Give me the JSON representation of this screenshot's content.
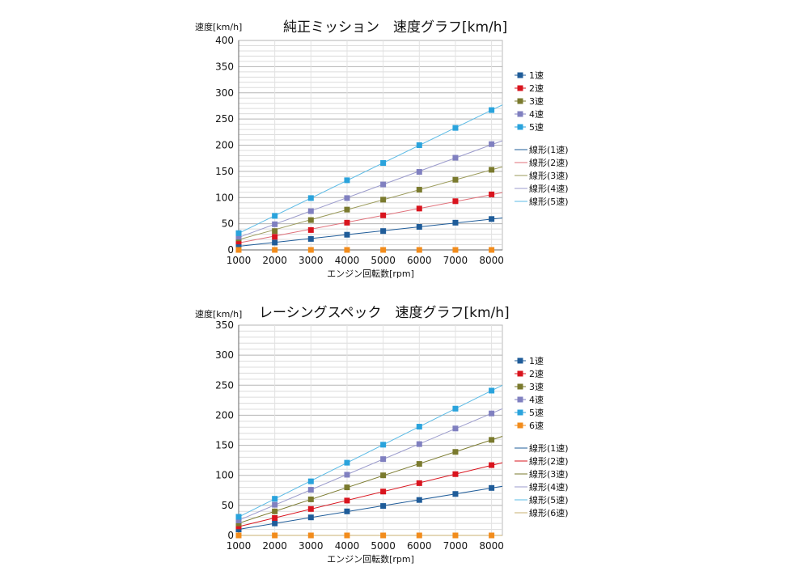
{
  "chart_data": [
    {
      "type": "scatter",
      "title": "純正ミッション　速度グラフ[km/h]",
      "ylabel": "速度[km/h]",
      "xlabel": "エンジン回転数[rpm]",
      "xlim": [
        1000,
        8300
      ],
      "ylim": [
        0,
        400
      ],
      "x_ticks": [
        "1000",
        "2000",
        "3000",
        "4000",
        "5000",
        "6000",
        "7000",
        "8000"
      ],
      "y_ticks": [
        "0",
        "50",
        "100",
        "150",
        "200",
        "250",
        "300",
        "350",
        "400"
      ],
      "grid": true,
      "legend_position": "right",
      "x": [
        1000,
        2000,
        3000,
        4000,
        5000,
        6000,
        7000,
        8000
      ],
      "series": [
        {
          "name": "1速",
          "color": "#1f5c99",
          "values": [
            8,
            14,
            21,
            29,
            36,
            44,
            52,
            59
          ]
        },
        {
          "name": "2速",
          "color": "#d9141e",
          "values": [
            16,
            25,
            38,
            52,
            66,
            79,
            93,
            106
          ]
        },
        {
          "name": "3速",
          "color": "#7a7a2e",
          "values": [
            22,
            36,
            57,
            77,
            96,
            115,
            134,
            153
          ]
        },
        {
          "name": "4速",
          "color": "#8080c0",
          "values": [
            25,
            49,
            74,
            99,
            125,
            149,
            176,
            202
          ]
        },
        {
          "name": "5速",
          "color": "#2aa3dc",
          "values": [
            32,
            65,
            99,
            133,
            166,
            200,
            233,
            267
          ]
        },
        {
          "name": "",
          "color": "#f28c1c",
          "values": [
            0,
            0,
            0,
            0,
            0,
            0,
            0,
            0
          ]
        }
      ],
      "trendlines": [
        {
          "name": "線形(1速)",
          "color": "#1f5c99"
        },
        {
          "name": "線形(2速)",
          "color": "#e0707a"
        },
        {
          "name": "線形(3速)",
          "color": "#9a9a5a"
        },
        {
          "name": "線形(4速)",
          "color": "#9b9bcc"
        },
        {
          "name": "線形(5速)",
          "color": "#5bbbe6"
        }
      ]
    },
    {
      "type": "scatter",
      "title": "レーシングスペック　速度グラフ[km/h]",
      "ylabel": "速度[km/h]",
      "xlabel": "エンジン回転数[rpm]",
      "xlim": [
        1000,
        8300
      ],
      "ylim": [
        0,
        350
      ],
      "x_ticks": [
        "1000",
        "2000",
        "3000",
        "4000",
        "5000",
        "6000",
        "7000",
        "8000"
      ],
      "y_ticks": [
        "0",
        "50",
        "100",
        "150",
        "200",
        "250",
        "300",
        "350"
      ],
      "grid": true,
      "legend_position": "right",
      "x": [
        1000,
        2000,
        3000,
        4000,
        5000,
        6000,
        7000,
        8000
      ],
      "series": [
        {
          "name": "1速",
          "color": "#1f5c99",
          "values": [
            10,
            20,
            30,
            40,
            49,
            59,
            69,
            79
          ]
        },
        {
          "name": "2速",
          "color": "#d9141e",
          "values": [
            15,
            29,
            44,
            58,
            73,
            87,
            102,
            117
          ]
        },
        {
          "name": "3速",
          "color": "#7a7a2e",
          "values": [
            20,
            40,
            60,
            80,
            100,
            119,
            139,
            159
          ]
        },
        {
          "name": "4速",
          "color": "#8080c0",
          "values": [
            25,
            51,
            76,
            101,
            127,
            152,
            178,
            203
          ]
        },
        {
          "name": "5速",
          "color": "#2aa3dc",
          "values": [
            31,
            61,
            90,
            121,
            151,
            181,
            211,
            241
          ]
        },
        {
          "name": "6速",
          "color": "#f28c1c",
          "values": [
            0,
            0,
            0,
            0,
            0,
            0,
            0,
            0
          ]
        }
      ],
      "trendlines": [
        {
          "name": "線形(1速)",
          "color": "#1f5c99"
        },
        {
          "name": "線形(2速)",
          "color": "#d9141e"
        },
        {
          "name": "線形(3速)",
          "color": "#7a7a2e"
        },
        {
          "name": "線形(4速)",
          "color": "#9b9bcc"
        },
        {
          "name": "線形(5速)",
          "color": "#5bbbe6"
        },
        {
          "name": "線形(6速)",
          "color": "#c8b070"
        }
      ]
    }
  ]
}
